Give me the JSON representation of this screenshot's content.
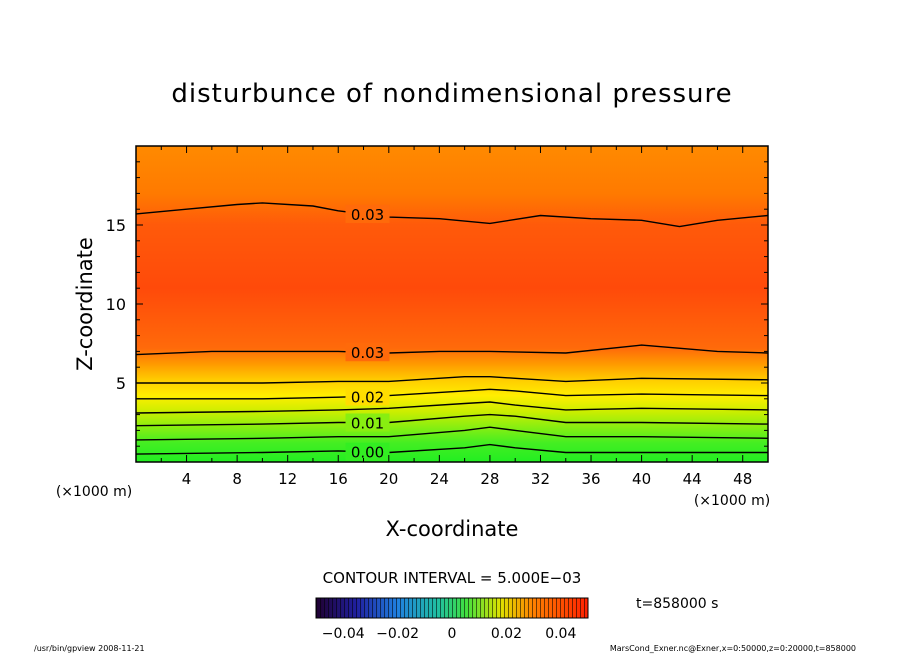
{
  "chart_data": {
    "type": "contour",
    "title": "disturbunce of nondimensional pressure",
    "xlabel": "X-coordinate",
    "ylabel": "Z-coordinate",
    "x_unit": "(×1000 m)",
    "y_unit": "(×1000 m)",
    "xlim": [
      0,
      50
    ],
    "ylim": [
      0,
      20
    ],
    "x_ticks": [
      4,
      8,
      12,
      16,
      20,
      24,
      28,
      32,
      36,
      40,
      44,
      48
    ],
    "y_ticks": [
      5,
      10,
      15
    ],
    "contour_interval_text": "CONTOUR INTERVAL = 5.000E−03",
    "time_text": "t=858000 s",
    "colorbar": {
      "range": [
        -0.05,
        0.05
      ],
      "tick_labels": [
        "−0.04",
        "−0.02",
        "0",
        "0.02",
        "0.04"
      ],
      "tick_values": [
        -0.04,
        -0.02,
        0,
        0.02,
        0.04
      ]
    },
    "contours": [
      {
        "level": 0.0,
        "label": "0.00",
        "points": [
          [
            0,
            0.5
          ],
          [
            10,
            0.6
          ],
          [
            16,
            0.7
          ],
          [
            20,
            0.6
          ],
          [
            26,
            0.9
          ],
          [
            28,
            1.1
          ],
          [
            30,
            0.9
          ],
          [
            34,
            0.6
          ],
          [
            40,
            0.6
          ],
          [
            50,
            0.6
          ]
        ]
      },
      {
        "level": 0.005,
        "label": "",
        "points": [
          [
            0,
            1.4
          ],
          [
            10,
            1.5
          ],
          [
            16,
            1.6
          ],
          [
            20,
            1.6
          ],
          [
            26,
            2.0
          ],
          [
            28,
            2.2
          ],
          [
            30,
            2.0
          ],
          [
            34,
            1.6
          ],
          [
            40,
            1.6
          ],
          [
            50,
            1.5
          ]
        ]
      },
      {
        "level": 0.01,
        "label": "0.01",
        "points": [
          [
            0,
            2.3
          ],
          [
            10,
            2.4
          ],
          [
            16,
            2.5
          ],
          [
            20,
            2.5
          ],
          [
            26,
            2.9
          ],
          [
            28,
            3.0
          ],
          [
            30,
            2.9
          ],
          [
            34,
            2.5
          ],
          [
            40,
            2.5
          ],
          [
            50,
            2.4
          ]
        ]
      },
      {
        "level": 0.015,
        "label": "",
        "points": [
          [
            0,
            3.1
          ],
          [
            10,
            3.2
          ],
          [
            16,
            3.3
          ],
          [
            20,
            3.4
          ],
          [
            26,
            3.7
          ],
          [
            28,
            3.8
          ],
          [
            30,
            3.6
          ],
          [
            34,
            3.3
          ],
          [
            40,
            3.4
          ],
          [
            50,
            3.3
          ]
        ]
      },
      {
        "level": 0.02,
        "label": "0.02",
        "points": [
          [
            0,
            4.0
          ],
          [
            10,
            4.0
          ],
          [
            16,
            4.1
          ],
          [
            20,
            4.2
          ],
          [
            26,
            4.5
          ],
          [
            28,
            4.6
          ],
          [
            30,
            4.5
          ],
          [
            34,
            4.2
          ],
          [
            40,
            4.3
          ],
          [
            50,
            4.2
          ]
        ]
      },
      {
        "level": 0.025,
        "label": "",
        "points": [
          [
            0,
            5.0
          ],
          [
            10,
            5.0
          ],
          [
            16,
            5.1
          ],
          [
            20,
            5.1
          ],
          [
            26,
            5.4
          ],
          [
            28,
            5.4
          ],
          [
            30,
            5.3
          ],
          [
            34,
            5.1
          ],
          [
            40,
            5.3
          ],
          [
            50,
            5.2
          ]
        ]
      },
      {
        "level": 0.03,
        "label": "0.03",
        "points": [
          [
            0,
            6.8
          ],
          [
            6,
            7.0
          ],
          [
            12,
            7.0
          ],
          [
            16,
            7.0
          ],
          [
            20,
            6.9
          ],
          [
            24,
            7.0
          ],
          [
            28,
            7.0
          ],
          [
            34,
            6.9
          ],
          [
            40,
            7.4
          ],
          [
            46,
            7.0
          ],
          [
            50,
            6.9
          ]
        ]
      },
      {
        "level": 0.03,
        "label": "0.03",
        "points": [
          [
            0,
            15.7
          ],
          [
            4,
            16.0
          ],
          [
            8,
            16.3
          ],
          [
            10,
            16.4
          ],
          [
            14,
            16.2
          ],
          [
            16,
            15.9
          ],
          [
            20,
            15.5
          ],
          [
            24,
            15.4
          ],
          [
            28,
            15.1
          ],
          [
            32,
            15.6
          ],
          [
            36,
            15.4
          ],
          [
            40,
            15.3
          ],
          [
            43,
            14.9
          ],
          [
            46,
            15.3
          ],
          [
            50,
            15.6
          ]
        ]
      }
    ]
  },
  "footer": {
    "left": "/usr/bin/gpview   2008-11-21",
    "right": "MarsCond_Exner.nc@Exner,x=0:50000,z=0:20000,t=858000"
  }
}
